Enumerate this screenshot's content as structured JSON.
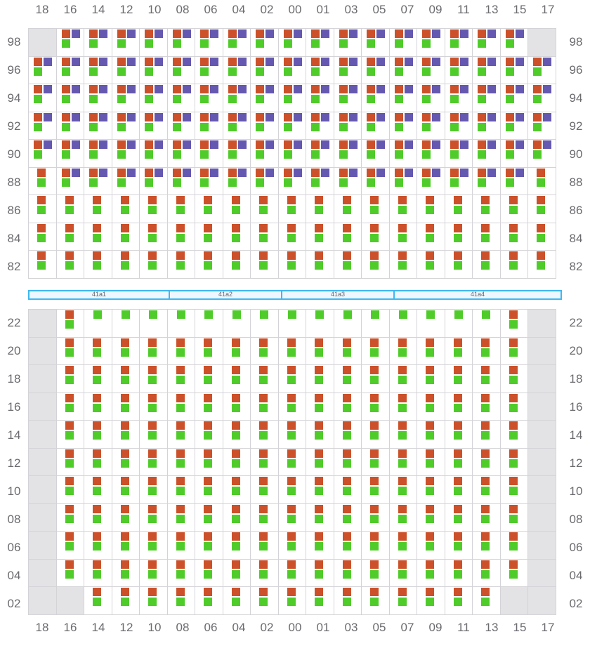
{
  "columns": [
    "18",
    "16",
    "14",
    "12",
    "10",
    "08",
    "06",
    "04",
    "02",
    "00",
    "01",
    "03",
    "05",
    "07",
    "09",
    "11",
    "13",
    "15",
    "17"
  ],
  "colors": {
    "orange": "#cc5029",
    "purple": "#6558b0",
    "green": "#4fcc2a",
    "empty": "#e3e3e6",
    "bar_border": "#3fb8f0"
  },
  "top_section": {
    "rows": [
      {
        "label": "98",
        "cells": "e,opg,opg,opg,opg,opg,opg,opg,opg,opg,opg,opg,opg,opg,opg,opg,opg,opg,e"
      },
      {
        "label": "96",
        "cells": "opg,opg,opg,opg,opg,opg,opg,opg,opg,opg,opg,opg,opg,opg,opg,opg,opg,opg,opg"
      },
      {
        "label": "94",
        "cells": "opg,opg,opg,opg,opg,opg,opg,opg,opg,opg,opg,opg,opg,opg,opg,opg,opg,opg,opg"
      },
      {
        "label": "92",
        "cells": "opg,opg,opg,opg,opg,opg,opg,opg,opg,opg,opg,opg,opg,opg,opg,opg,opg,opg,opg"
      },
      {
        "label": "90",
        "cells": "opg,opg,opg,opg,opg,opg,opg,opg,opg,opg,opg,opg,opg,opg,opg,opg,opg,opg,opg"
      },
      {
        "label": "88",
        "cells": "og,opg,opg,opg,opg,opg,opg,opg,opg,opg,opg,opg,opg,opg,opg,opg,opg,opg,og"
      },
      {
        "label": "86",
        "cells": "og,og,og,og,og,og,og,og,og,og,og,og,og,og,og,og,og,og,og"
      },
      {
        "label": "84",
        "cells": "og,og,og,og,og,og,og,og,og,og,og,og,og,og,og,og,og,og,og"
      },
      {
        "label": "82",
        "cells": "og,og,og,og,og,og,og,og,og,og,og,og,og,og,og,og,og,og,og"
      }
    ]
  },
  "zones": [
    {
      "label": "41a1",
      "span": 5
    },
    {
      "label": "41a2",
      "span": 4
    },
    {
      "label": "41a3",
      "span": 4
    },
    {
      "label": "41a4",
      "span": 6
    }
  ],
  "bottom_section": {
    "rows": [
      {
        "label": "22",
        "cells": "e,og,g,g,g,g,g,g,g,g,g,g,g,g,g,g,g,og,e"
      },
      {
        "label": "20",
        "cells": "e,og,og,og,og,og,og,og,og,og,og,og,og,og,og,og,og,og,e"
      },
      {
        "label": "18",
        "cells": "e,og,og,og,og,og,og,og,og,og,og,og,og,og,og,og,og,og,e"
      },
      {
        "label": "16",
        "cells": "e,og,og,og,og,og,og,og,og,og,og,og,og,og,og,og,og,og,e"
      },
      {
        "label": "14",
        "cells": "e,og,og,og,og,og,og,og,og,og,og,og,og,og,og,og,og,og,e"
      },
      {
        "label": "12",
        "cells": "e,og,og,og,og,og,og,og,og,og,og,og,og,og,og,og,og,og,e"
      },
      {
        "label": "10",
        "cells": "e,og,og,og,og,og,og,og,og,og,og,og,og,og,og,og,og,og,e"
      },
      {
        "label": "08",
        "cells": "e,og,og,og,og,og,og,og,og,og,og,og,og,og,og,og,og,og,e"
      },
      {
        "label": "06",
        "cells": "e,og,og,og,og,og,og,og,og,og,og,og,og,og,og,og,og,og,e"
      },
      {
        "label": "04",
        "cells": "e,og,og,og,og,og,og,og,og,og,og,og,og,og,og,og,og,og,e"
      },
      {
        "label": "02",
        "cells": "e,e,og,og,og,og,og,og,og,og,og,og,og,og,og,og,og,e,e"
      }
    ]
  }
}
